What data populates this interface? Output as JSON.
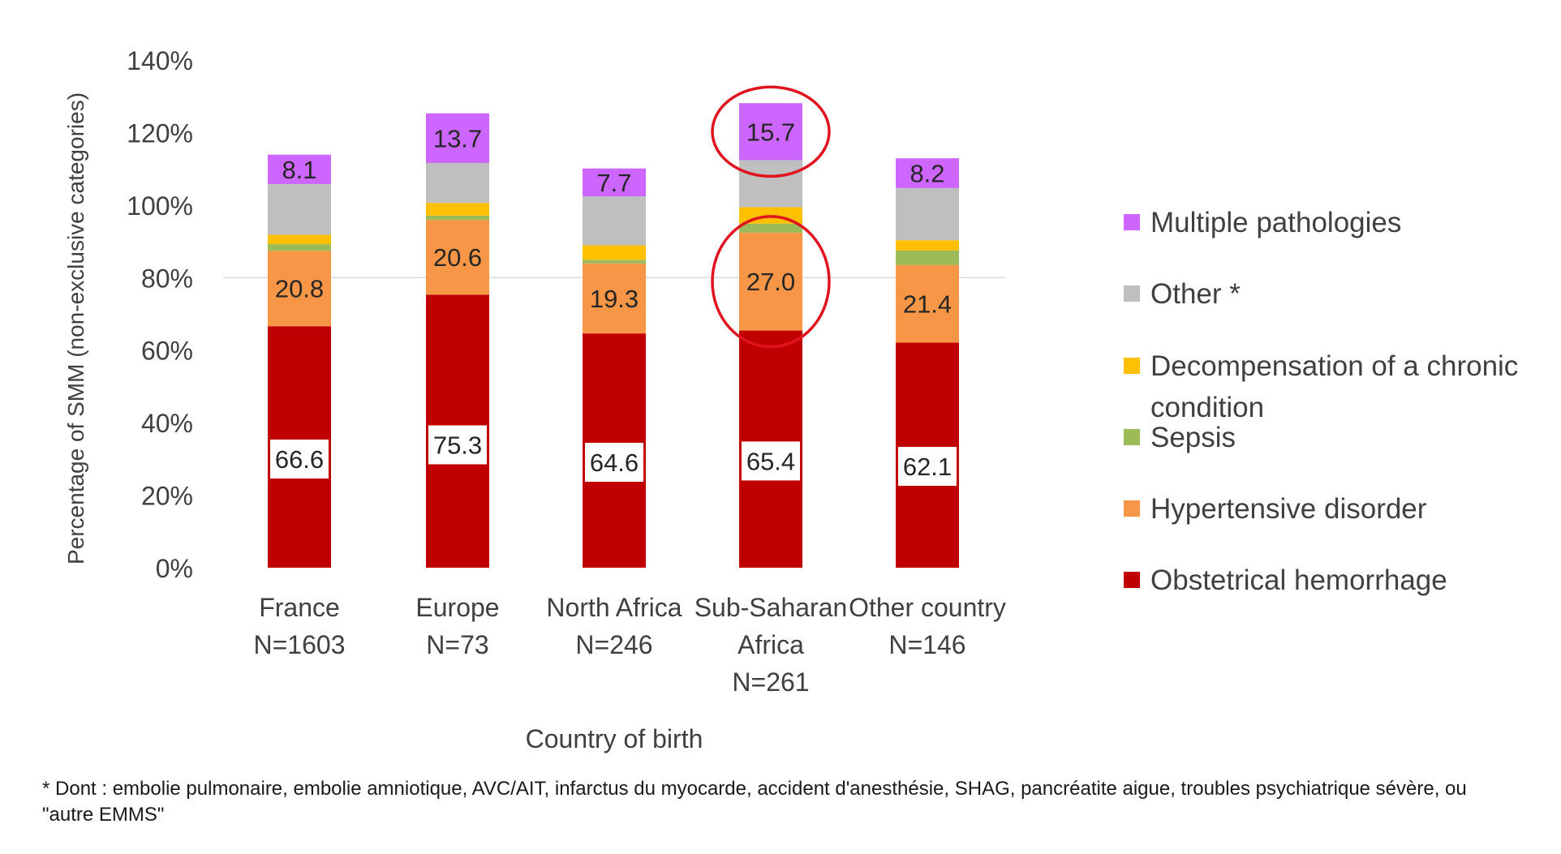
{
  "chart_data": {
    "type": "bar",
    "stacked": true,
    "ylabel": "Percentage of SMM (non-exclusive categories)",
    "xlabel": "Country of birth",
    "ylim": [
      0,
      140
    ],
    "yticks": [
      0,
      20,
      40,
      60,
      80,
      100,
      120,
      140
    ],
    "ytick_suffix": "%",
    "grid": false,
    "legend_position": "right",
    "categories": [
      [
        "France",
        "N=1603"
      ],
      [
        "Europe",
        "N=73"
      ],
      [
        "North Africa",
        "N=246"
      ],
      [
        "Sub-Saharan",
        "Africa",
        "N=261"
      ],
      [
        "Other country",
        "N=146"
      ]
    ],
    "series": [
      {
        "name": "Obstetrical hemorrhage",
        "color": "#c00000",
        "values": [
          66.6,
          75.3,
          64.6,
          65.4,
          62.1
        ],
        "labels": [
          "66.6",
          "75.3",
          "64.6",
          "65.4",
          "62.1"
        ],
        "label_style": "boxed"
      },
      {
        "name": "Hypertensive disorder",
        "color": "#f79646",
        "values": [
          20.8,
          20.6,
          19.3,
          27.0,
          21.4
        ],
        "labels": [
          "20.8",
          "20.6",
          "19.3",
          "27.0",
          "21.4"
        ],
        "label_style": "plain"
      },
      {
        "name": "Sepsis",
        "color": "#9bbb59",
        "values": [
          1.8,
          1.2,
          1.0,
          2.5,
          4.0
        ],
        "labels": [],
        "label_style": "none"
      },
      {
        "name": "Decompensation of a chronic condition",
        "color": "#ffc000",
        "values": [
          2.6,
          3.5,
          4.0,
          4.5,
          2.8
        ],
        "labels": [],
        "label_style": "none"
      },
      {
        "name": "Other *",
        "color": "#bfbfbf",
        "values": [
          14.0,
          11.0,
          13.5,
          13.0,
          14.4
        ],
        "labels": [],
        "label_style": "none"
      },
      {
        "name": "Multiple pathologies",
        "color": "#cc66ff",
        "values": [
          8.1,
          13.7,
          7.7,
          15.7,
          8.2
        ],
        "labels": [
          "8.1",
          "13.7",
          "7.7",
          "15.7",
          "8.2"
        ],
        "label_style": "plain"
      }
    ],
    "highlights": [
      {
        "category_index": 3,
        "series": "Multiple pathologies",
        "shape": "ellipse",
        "color": "#e0141e"
      },
      {
        "category_index": 3,
        "series": "Hypertensive disorder",
        "shape": "ellipse",
        "color": "#e0141e"
      }
    ]
  },
  "footnote": "* Dont : embolie pulmonaire, embolie amniotique, AVC/AIT, infarctus du myocarde, accident d'anesthésie, SHAG, pancréatite aigue, troubles psychiatrique sévère, ou \"autre EMMS\""
}
